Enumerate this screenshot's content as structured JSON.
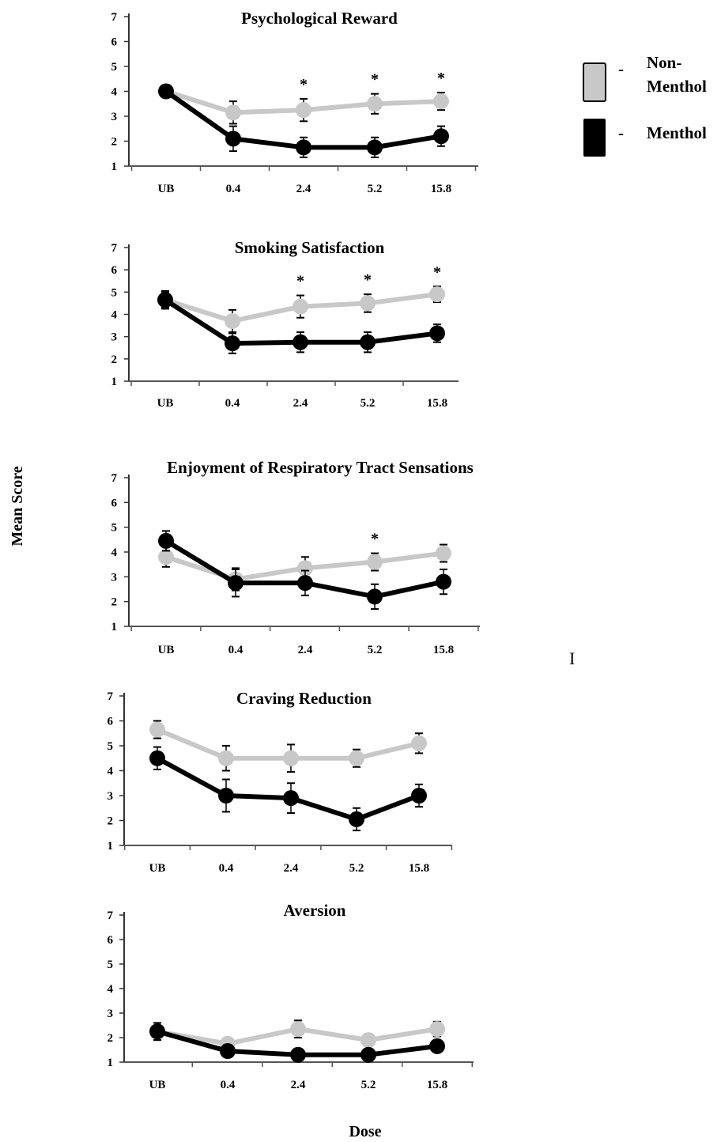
{
  "legend": {
    "items": [
      {
        "dash": "-",
        "label_line1": "Non-",
        "label_line2": "Menthol",
        "color": "#c8c8c8"
      },
      {
        "dash": "-",
        "label_line1": "Menthol",
        "label_line2": "",
        "color": "#000000"
      }
    ]
  },
  "ylabel": "Mean Score",
  "xlabel": "Dose",
  "stray_mark": "I",
  "colors": {
    "non_menthol": "#c8c8c8",
    "menthol": "#000000",
    "axis": "#555555"
  },
  "chart_data": [
    {
      "type": "line",
      "title": "Psychological Reward",
      "categories": [
        "UB",
        "0.4",
        "2.4",
        "5.2",
        "15.8"
      ],
      "ylim": [
        1,
        7
      ],
      "yticks": [
        1,
        2,
        3,
        4,
        5,
        6,
        7
      ],
      "significance": [
        "",
        "",
        "*",
        "*",
        "*"
      ],
      "series": [
        {
          "name": "Non-Menthol",
          "values": [
            4.0,
            3.15,
            3.25,
            3.5,
            3.6
          ],
          "errors": [
            0.25,
            0.45,
            0.45,
            0.4,
            0.35
          ]
        },
        {
          "name": "Menthol",
          "values": [
            4.0,
            2.1,
            1.75,
            1.75,
            2.2
          ],
          "errors": [
            0.25,
            0.5,
            0.4,
            0.4,
            0.4
          ]
        }
      ]
    },
    {
      "type": "line",
      "title": "Smoking Satisfaction",
      "categories": [
        "UB",
        "0.4",
        "2.4",
        "5.2",
        "15.8"
      ],
      "ylim": [
        1,
        7
      ],
      "yticks": [
        1,
        2,
        3,
        4,
        5,
        6,
        7
      ],
      "significance": [
        "",
        "",
        "*",
        "*",
        "*"
      ],
      "series": [
        {
          "name": "Non-Menthol",
          "values": [
            4.65,
            3.7,
            4.35,
            4.5,
            4.9
          ],
          "errors": [
            0.35,
            0.5,
            0.5,
            0.4,
            0.35
          ]
        },
        {
          "name": "Menthol",
          "values": [
            4.65,
            2.7,
            2.75,
            2.75,
            3.15
          ],
          "errors": [
            0.4,
            0.45,
            0.45,
            0.45,
            0.4
          ]
        }
      ]
    },
    {
      "type": "line",
      "title": "Enjoyment of Respiratory Tract Sensations",
      "categories": [
        "UB",
        "0.4",
        "2.4",
        "5.2",
        "15.8"
      ],
      "ylim": [
        1,
        7
      ],
      "yticks": [
        1,
        2,
        3,
        4,
        5,
        6,
        7
      ],
      "significance": [
        "",
        "",
        "",
        "*",
        ""
      ],
      "series": [
        {
          "name": "Non-Menthol",
          "values": [
            3.8,
            2.9,
            3.35,
            3.6,
            3.95
          ],
          "errors": [
            0.4,
            0.45,
            0.45,
            0.35,
            0.35
          ]
        },
        {
          "name": "Menthol",
          "values": [
            4.45,
            2.75,
            2.75,
            2.2,
            2.8
          ],
          "errors": [
            0.4,
            0.55,
            0.5,
            0.5,
            0.5
          ]
        }
      ]
    },
    {
      "type": "line",
      "title": "Craving Reduction",
      "categories": [
        "UB",
        "0.4",
        "2.4",
        "5.2",
        "15.8"
      ],
      "ylim": [
        1,
        7
      ],
      "yticks": [
        1,
        2,
        3,
        4,
        5,
        6,
        7
      ],
      "significance": [
        "",
        "",
        "",
        "",
        ""
      ],
      "series": [
        {
          "name": "Non-Menthol",
          "values": [
            5.65,
            4.5,
            4.5,
            4.5,
            5.1
          ],
          "errors": [
            0.35,
            0.5,
            0.55,
            0.35,
            0.4
          ]
        },
        {
          "name": "Menthol",
          "values": [
            4.5,
            3.0,
            2.9,
            2.05,
            3.0
          ],
          "errors": [
            0.45,
            0.65,
            0.6,
            0.45,
            0.45
          ]
        }
      ]
    },
    {
      "type": "line",
      "title": "Aversion",
      "categories": [
        "UB",
        "0.4",
        "2.4",
        "5.2",
        "15.8"
      ],
      "ylim": [
        1,
        7
      ],
      "yticks": [
        1,
        2,
        3,
        4,
        5,
        6,
        7
      ],
      "significance": [
        "",
        "",
        "",
        "",
        ""
      ],
      "series": [
        {
          "name": "Non-Menthol",
          "values": [
            2.25,
            1.75,
            2.35,
            1.9,
            2.35
          ],
          "errors": [
            0.35,
            0.2,
            0.35,
            0.25,
            0.3
          ]
        },
        {
          "name": "Menthol",
          "values": [
            2.25,
            1.45,
            1.3,
            1.3,
            1.65
          ],
          "errors": [
            0.35,
            0.2,
            0.2,
            0.2,
            0.25
          ]
        }
      ]
    }
  ]
}
